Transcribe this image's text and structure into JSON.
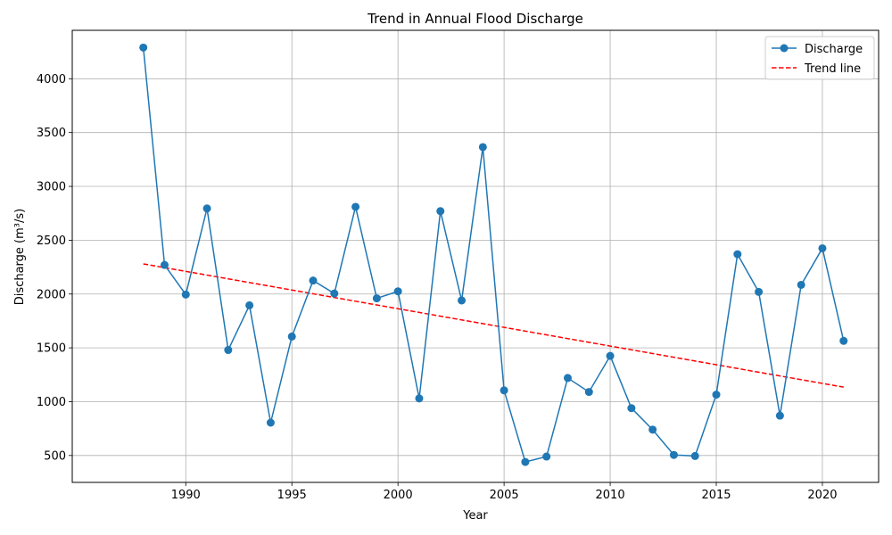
{
  "chart_data": {
    "type": "line",
    "title": "Trend in Annual Flood Discharge",
    "xlabel": "Year",
    "ylabel": "Discharge (m³/s)",
    "xlim": [
      1984.65,
      2022.65
    ],
    "ylim": [
      250,
      4450
    ],
    "xticks": [
      1990,
      1995,
      2000,
      2005,
      2010,
      2015,
      2020
    ],
    "yticks": [
      500,
      1000,
      1500,
      2000,
      2500,
      3000,
      3500,
      4000
    ],
    "grid": true,
    "legend_position": "top-right",
    "x": [
      1988,
      1989,
      1990,
      1991,
      1992,
      1993,
      1994,
      1995,
      1996,
      1997,
      1998,
      1999,
      2000,
      2001,
      2002,
      2003,
      2004,
      2005,
      2006,
      2007,
      2008,
      2009,
      2010,
      2011,
      2012,
      2013,
      2014,
      2015,
      2016,
      2017,
      2018,
      2019,
      2020,
      2021
    ],
    "series": [
      {
        "name": "Discharge",
        "color": "#1f77b4",
        "style": "solid-with-markers",
        "values": [
          4290,
          2270,
          1995,
          2795,
          1480,
          1895,
          805,
          1605,
          2125,
          2005,
          2810,
          1960,
          2025,
          1030,
          2770,
          1940,
          3365,
          1105,
          440,
          490,
          1220,
          1090,
          1425,
          940,
          740,
          505,
          495,
          1065,
          2370,
          2020,
          870,
          2085,
          2425,
          1565
        ]
      },
      {
        "name": "Trend line",
        "color": "#ff0000",
        "style": "dashed",
        "x": [
          1988,
          2021
        ],
        "values": [
          2280,
          1135
        ]
      }
    ]
  }
}
